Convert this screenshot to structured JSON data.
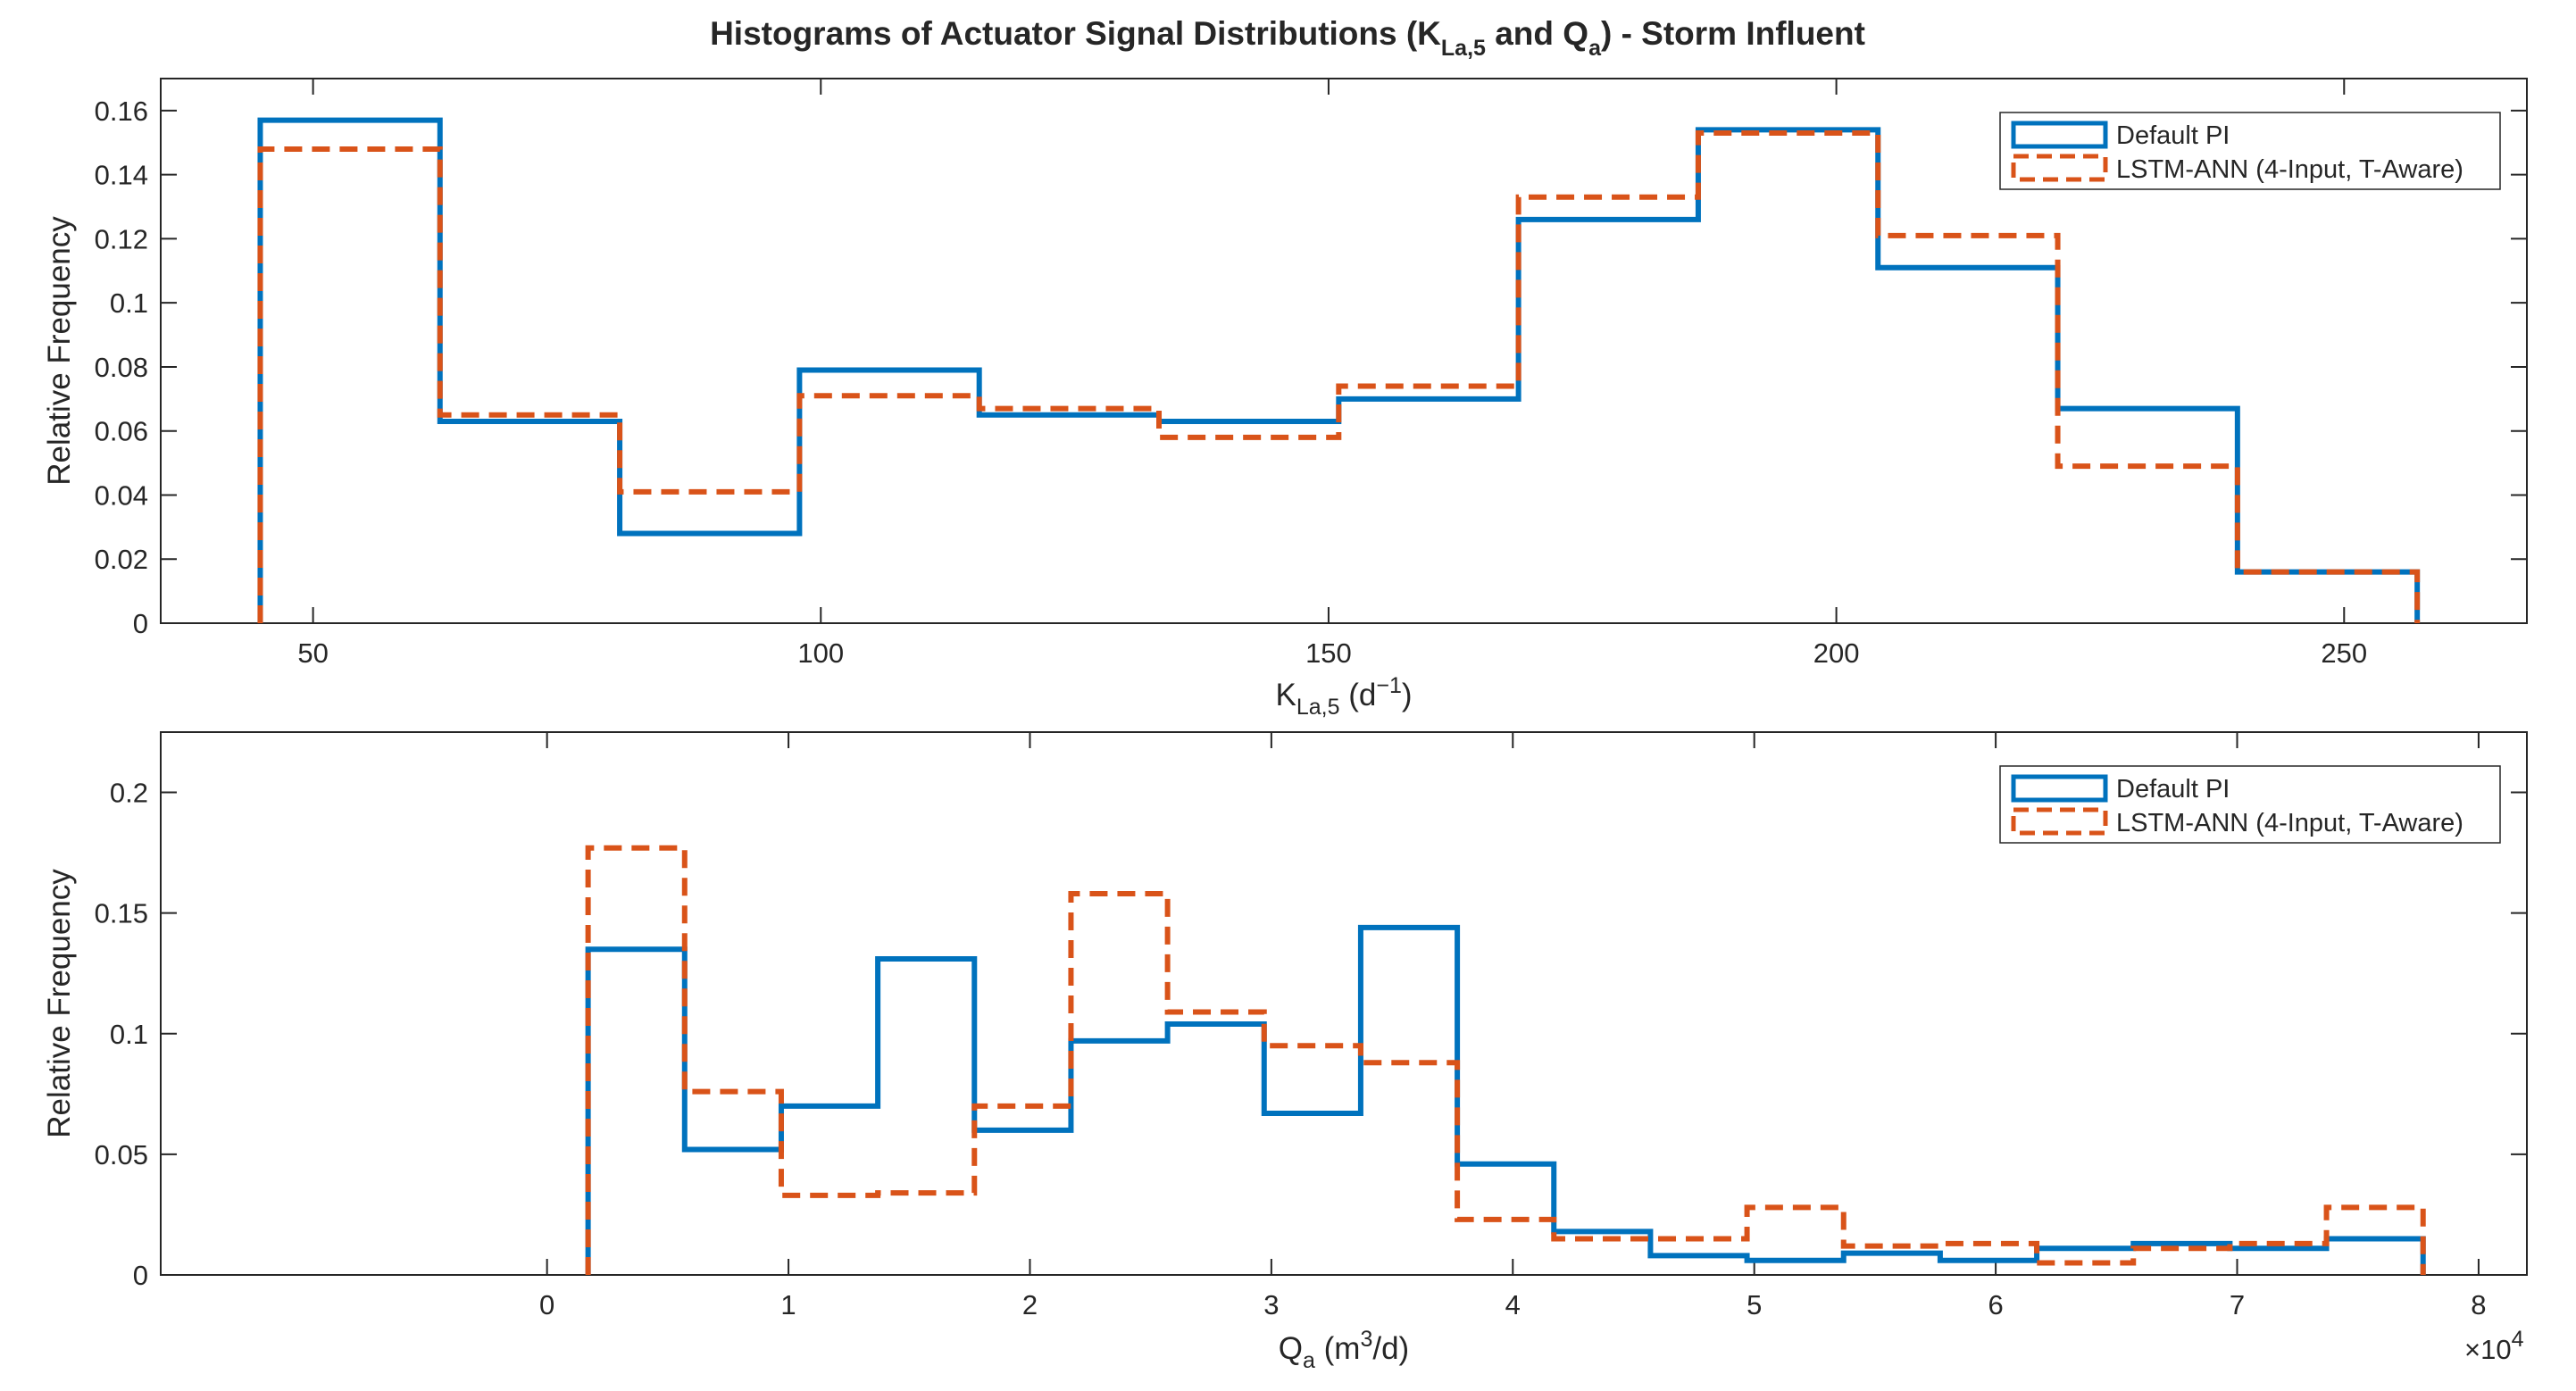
{
  "figure": {
    "title": {
      "main": "Histograms of Actuator Signal Distributions (K",
      "sub1": "La,5",
      "mid": " and Q",
      "sub2": "a",
      "end": ") - Storm Influent"
    }
  },
  "colors": {
    "pi": "#0072BD",
    "lstm": "#D95319",
    "axis": "#262626",
    "background": "#ffffff"
  },
  "chart_data": [
    {
      "type": "histogram",
      "id": "kla",
      "title": "",
      "xlabel": {
        "main": "K",
        "sub": "La,5",
        "rest": " (d",
        "sup": "−1",
        "close": ")"
      },
      "ylabel": "Relative Frequency",
      "xlim": [
        35,
        268
      ],
      "ylim": [
        0,
        0.17
      ],
      "xticks": [
        50,
        100,
        150,
        200,
        250
      ],
      "xtick_labels": [
        "50",
        "100",
        "150",
        "200",
        "250"
      ],
      "yticks": [
        0,
        0.02,
        0.04,
        0.06,
        0.08,
        0.1,
        0.12,
        0.14,
        0.16
      ],
      "ytick_labels": [
        "0",
        "0.02",
        "0.04",
        "0.06",
        "0.08",
        "0.1",
        "0.12",
        "0.14",
        "0.16"
      ],
      "exponent_label": "",
      "bin_edges": [
        44.8,
        62.5,
        80.2,
        97.9,
        115.6,
        133.3,
        151.0,
        168.7,
        186.4,
        204.1,
        221.8,
        239.5,
        257.2
      ],
      "legend": {
        "position": "top-right",
        "entries": [
          "Default PI",
          "LSTM-ANN (4-Input, T-Aware)"
        ]
      },
      "series": [
        {
          "name": "Default PI",
          "style": "solid",
          "values": [
            0.157,
            0.063,
            0.028,
            0.079,
            0.065,
            0.063,
            0.07,
            0.126,
            0.154,
            0.111,
            0.067,
            0.016
          ]
        },
        {
          "name": "LSTM-ANN (4-Input, T-Aware)",
          "style": "dashed",
          "values": [
            0.148,
            0.065,
            0.041,
            0.071,
            0.067,
            0.058,
            0.074,
            0.133,
            0.153,
            0.121,
            0.049,
            0.016
          ]
        }
      ]
    },
    {
      "type": "histogram",
      "id": "qa",
      "title": "",
      "xlabel": {
        "main": "Q",
        "sub": "a",
        "rest": " (m",
        "sup": "3",
        "close": "/d)"
      },
      "ylabel": "Relative Frequency",
      "xlim": [
        -1.6,
        8.2
      ],
      "ylim": [
        0,
        0.225
      ],
      "xticks": [
        0,
        1,
        2,
        3,
        4,
        5,
        6,
        7,
        8
      ],
      "xtick_labels": [
        "0",
        "1",
        "2",
        "3",
        "4",
        "5",
        "6",
        "7",
        "8"
      ],
      "yticks": [
        0,
        0.05,
        0.1,
        0.15,
        0.2
      ],
      "ytick_labels": [
        "0",
        "0.05",
        "0.1",
        "0.15",
        "0.2"
      ],
      "exponent_label": {
        "base": "×10",
        "exp": "4"
      },
      "bin_edges": [
        0.17,
        0.57,
        0.97,
        1.37,
        1.77,
        2.17,
        2.57,
        2.97,
        3.37,
        3.77,
        4.17,
        4.57,
        4.97,
        5.37,
        5.77,
        6.17,
        6.57,
        6.97,
        7.37,
        7.77
      ],
      "legend": {
        "position": "top-right",
        "entries": [
          "Default PI",
          "LSTM-ANN (4-Input, T-Aware)"
        ]
      },
      "series": [
        {
          "name": "Default PI",
          "style": "solid",
          "values": [
            0.135,
            0.052,
            0.07,
            0.131,
            0.06,
            0.097,
            0.104,
            0.067,
            0.144,
            0.046,
            0.018,
            0.008,
            0.006,
            0.009,
            0.006,
            0.011,
            0.013,
            0.011,
            0.015
          ]
        },
        {
          "name": "LSTM-ANN (4-Input, T-Aware)",
          "style": "dashed",
          "values": [
            0.177,
            0.076,
            0.033,
            0.034,
            0.07,
            0.158,
            0.109,
            0.095,
            0.088,
            0.023,
            0.015,
            0.015,
            0.028,
            0.012,
            0.013,
            0.005,
            0.011,
            0.013,
            0.028
          ]
        }
      ]
    }
  ]
}
